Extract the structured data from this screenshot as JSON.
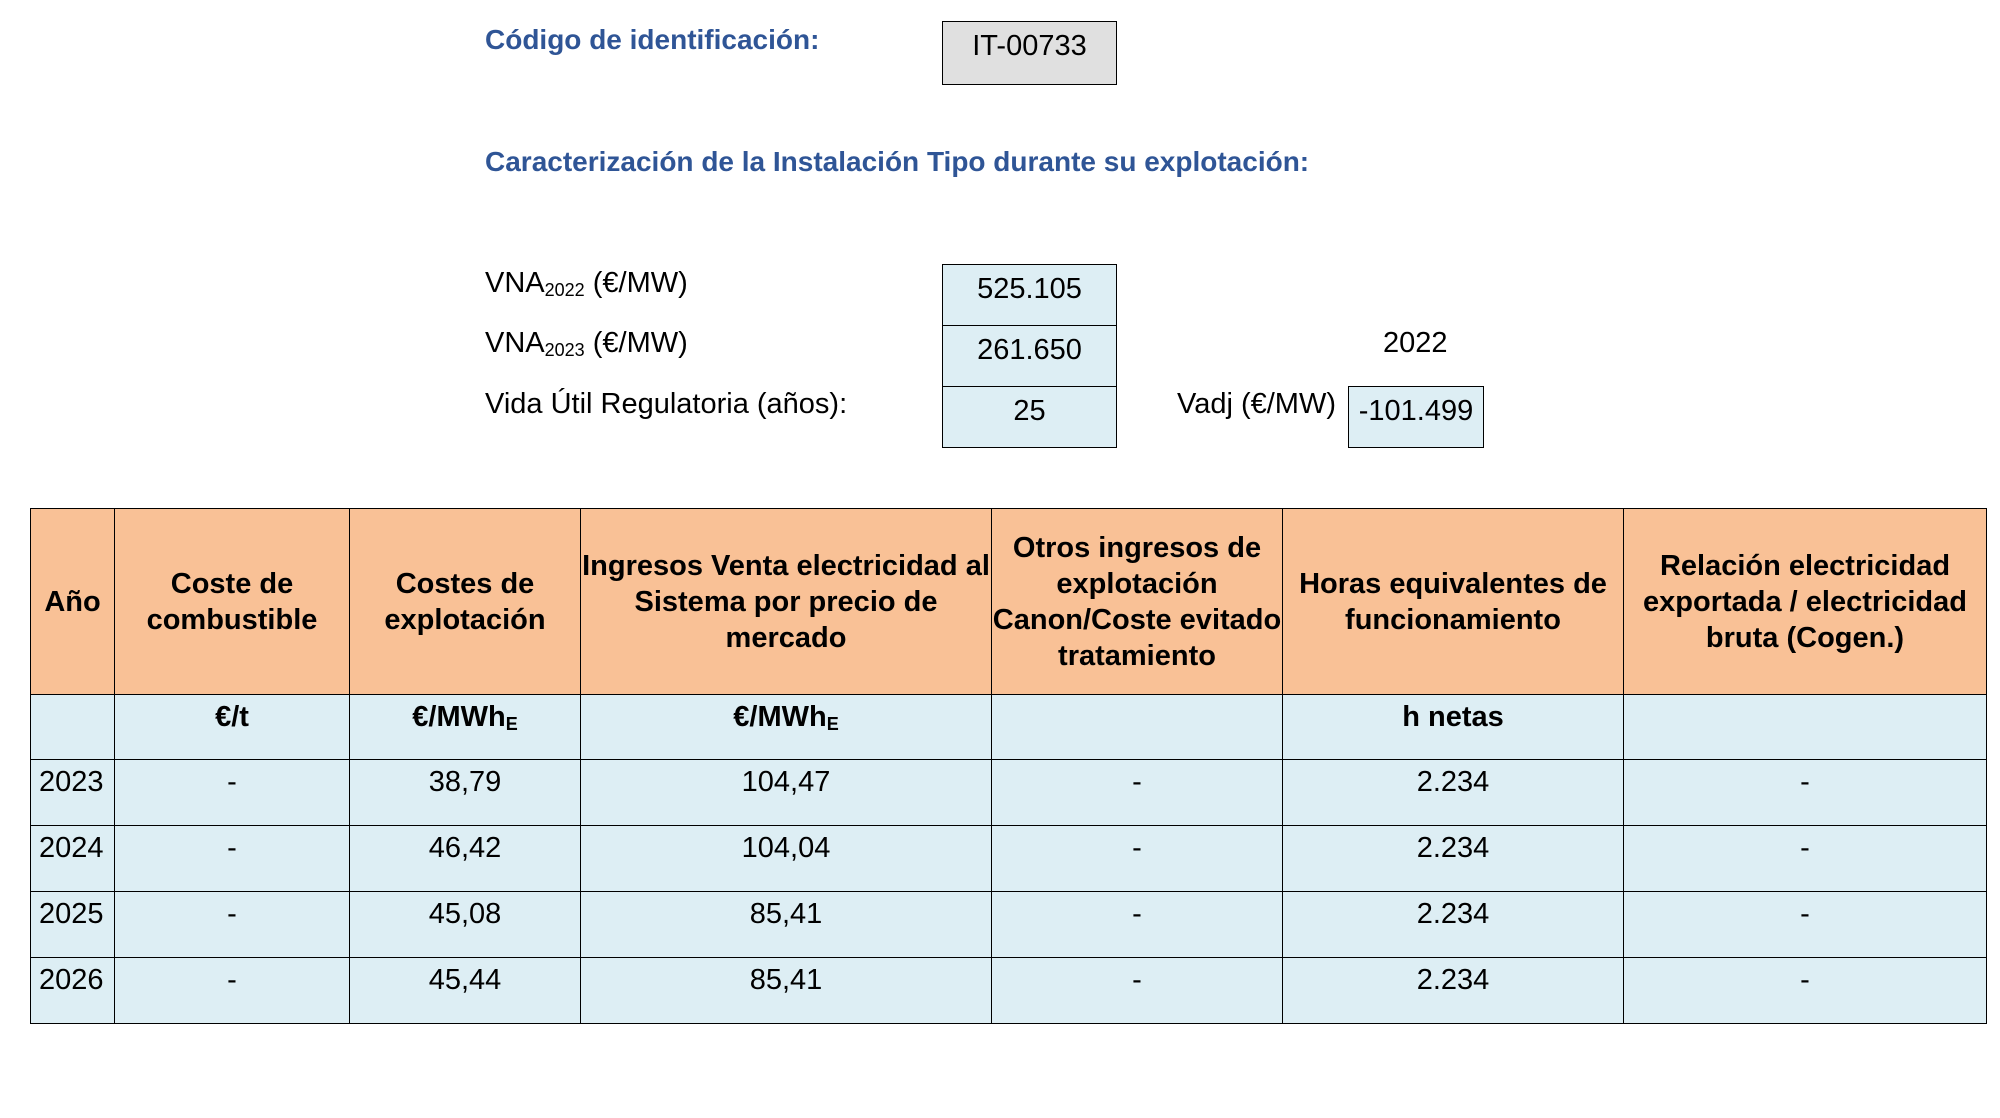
{
  "header": {
    "code_label": "Código de identificación:",
    "code_value": "IT-00733",
    "section_title": "Caracterización de la Instalación Tipo durante su explotación:"
  },
  "params": {
    "vna2022_label": "VNA",
    "vna2022_sub": "2022",
    "vna2022_unit": " (€/MW)",
    "vna2022_value": "525.105",
    "vna2023_label": "VNA",
    "vna2023_sub": "2023",
    "vna2023_unit": " (€/MW)",
    "vna2023_value": "261.650",
    "year_note": "2022",
    "vida_label": "Vida Útil Regulatoria (años):",
    "vida_value": "25",
    "vadj_label": "Vadj (€/MW)",
    "vadj_value": "-101.499"
  },
  "table": {
    "headers": [
      "Año",
      "Coste de combustible",
      "Costes de explotación",
      "Ingresos Venta electricidad al Sistema por precio de mercado",
      "Otros ingresos de explotación Canon/Coste evitado tratamiento",
      "Horas equivalentes de funcionamiento",
      "Relación electricidad exportada / electricidad bruta (Cogen.)"
    ],
    "units": {
      "combustible": "€/t",
      "explotacion_main": "€/MWh",
      "explotacion_sub": "E",
      "ingresos_main": "€/MWh",
      "ingresos_sub": "E",
      "horas": "h netas"
    },
    "rows": [
      {
        "year": "2023",
        "combustible": "-",
        "costes": "38,79",
        "ingresos": "104,47",
        "otros": "-",
        "horas": "2.234",
        "relacion": "-"
      },
      {
        "year": "2024",
        "combustible": "-",
        "costes": "46,42",
        "ingresos": "104,04",
        "otros": "-",
        "horas": "2.234",
        "relacion": "-"
      },
      {
        "year": "2025",
        "combustible": "-",
        "costes": "45,08",
        "ingresos": "85,41",
        "otros": "-",
        "horas": "2.234",
        "relacion": "-"
      },
      {
        "year": "2026",
        "combustible": "-",
        "costes": "45,44",
        "ingresos": "85,41",
        "otros": "-",
        "horas": "2.234",
        "relacion": "-"
      }
    ]
  }
}
